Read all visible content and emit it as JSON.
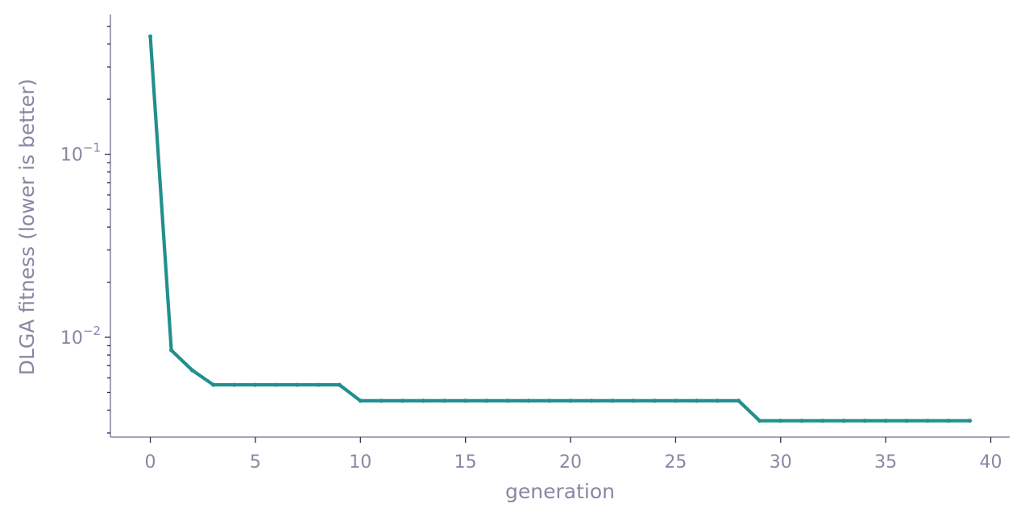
{
  "chart_data": {
    "type": "line",
    "title": "",
    "xlabel": "generation",
    "ylabel": "DLGA fitness (lower is better)",
    "y_scale": "log",
    "xlim": [
      -1.9,
      40.9
    ],
    "ylim": [
      0.00285,
      0.58
    ],
    "x_ticks": [
      0,
      5,
      10,
      15,
      20,
      25,
      30,
      35,
      40
    ],
    "x_tick_labels": [
      "0",
      "5",
      "10",
      "15",
      "20",
      "25",
      "30",
      "35",
      "40"
    ],
    "y_major_ticks": [
      0.1,
      0.01
    ],
    "y_tick_labels": [
      {
        "base": "10",
        "exp": "−1"
      },
      {
        "base": "10",
        "exp": "−2"
      }
    ],
    "y_minor_ticks": [
      0.003,
      0.004,
      0.005,
      0.006,
      0.007,
      0.008,
      0.009,
      0.02,
      0.03,
      0.04,
      0.05,
      0.06,
      0.07,
      0.08,
      0.09,
      0.2,
      0.3,
      0.4,
      0.5
    ],
    "grid": false,
    "color": "#21908d",
    "series": [
      {
        "x": [
          0,
          1,
          2,
          3,
          4,
          5,
          6,
          7,
          8,
          9,
          10,
          11,
          12,
          13,
          14,
          15,
          16,
          17,
          18,
          19,
          20,
          21,
          22,
          23,
          24,
          25,
          26,
          27,
          28,
          29,
          30,
          31,
          32,
          33,
          34,
          35,
          36,
          37,
          38,
          39
        ],
        "values": [
          0.44,
          0.0085,
          0.0066,
          0.0055,
          0.0055,
          0.0055,
          0.0055,
          0.0055,
          0.0055,
          0.0055,
          0.0045,
          0.0045,
          0.0045,
          0.0045,
          0.0045,
          0.0045,
          0.0045,
          0.0045,
          0.0045,
          0.0045,
          0.0045,
          0.0045,
          0.0045,
          0.0045,
          0.0045,
          0.0045,
          0.0045,
          0.0045,
          0.0045,
          0.0035,
          0.0035,
          0.0035,
          0.0035,
          0.0035,
          0.0035,
          0.0035,
          0.0035,
          0.0035,
          0.0035,
          0.0035
        ]
      }
    ]
  }
}
